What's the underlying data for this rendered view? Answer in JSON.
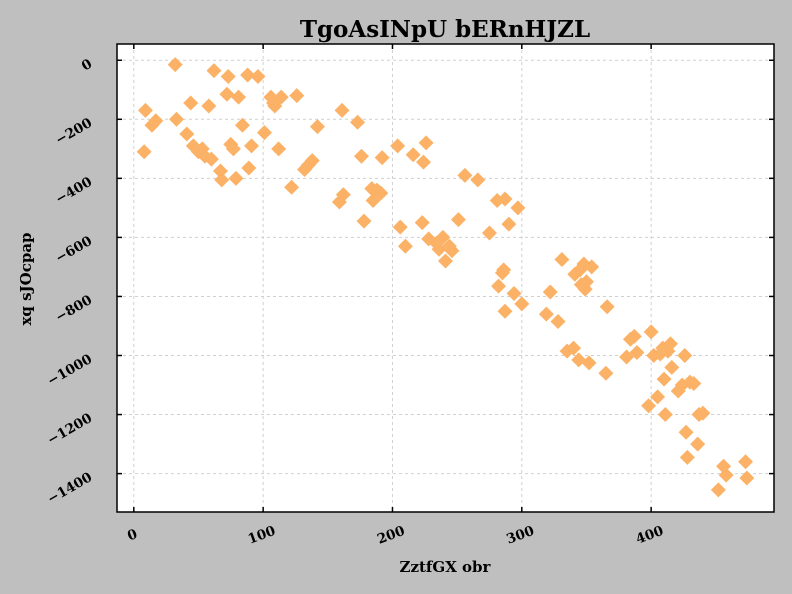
{
  "chart_data": {
    "type": "scatter",
    "title": "TgoAsINpU bERnHJZL",
    "xlabel": "ZztfGX obr",
    "ylabel": "xq sJOcpap",
    "xlim": [
      -13,
      495
    ],
    "ylim": [
      -1530,
      55
    ],
    "xticks": [
      0,
      100,
      200,
      300,
      400
    ],
    "yticks": [
      0,
      -200,
      -400,
      -600,
      -800,
      -1000,
      -1200,
      -1400
    ],
    "grid": true,
    "marker": "diamond",
    "marker_color": "#fbb267",
    "background_color": "#ffffff",
    "figure_color": "#bfbfbf",
    "points": [
      [
        9,
        -170
      ],
      [
        8,
        -310
      ],
      [
        14,
        -220
      ],
      [
        17,
        -205
      ],
      [
        32,
        -15
      ],
      [
        33,
        -200
      ],
      [
        41,
        -250
      ],
      [
        44,
        -145
      ],
      [
        46,
        -290
      ],
      [
        50,
        -310
      ],
      [
        53,
        -300
      ],
      [
        55,
        -325
      ],
      [
        58,
        -155
      ],
      [
        60,
        -335
      ],
      [
        62,
        -35
      ],
      [
        67,
        -375
      ],
      [
        68,
        -405
      ],
      [
        72,
        -115
      ],
      [
        73,
        -55
      ],
      [
        75,
        -285
      ],
      [
        77,
        -300
      ],
      [
        79,
        -400
      ],
      [
        81,
        -125
      ],
      [
        84,
        -220
      ],
      [
        88,
        -50
      ],
      [
        89,
        -365
      ],
      [
        91,
        -290
      ],
      [
        96,
        -55
      ],
      [
        101,
        -245
      ],
      [
        106,
        -125
      ],
      [
        108,
        -145
      ],
      [
        109,
        -155
      ],
      [
        112,
        -300
      ],
      [
        114,
        -125
      ],
      [
        122,
        -430
      ],
      [
        126,
        -120
      ],
      [
        132,
        -370
      ],
      [
        135,
        -355
      ],
      [
        138,
        -340
      ],
      [
        142,
        -225
      ],
      [
        159,
        -480
      ],
      [
        161,
        -170
      ],
      [
        162,
        -455
      ],
      [
        173,
        -210
      ],
      [
        176,
        -325
      ],
      [
        178,
        -545
      ],
      [
        184,
        -435
      ],
      [
        185,
        -475
      ],
      [
        188,
        -440
      ],
      [
        191,
        -450
      ],
      [
        192,
        -330
      ],
      [
        204,
        -290
      ],
      [
        206,
        -565
      ],
      [
        210,
        -630
      ],
      [
        216,
        -320
      ],
      [
        223,
        -550
      ],
      [
        224,
        -345
      ],
      [
        226,
        -280
      ],
      [
        228,
        -605
      ],
      [
        234,
        -620
      ],
      [
        236,
        -640
      ],
      [
        239,
        -600
      ],
      [
        241,
        -680
      ],
      [
        244,
        -630
      ],
      [
        246,
        -645
      ],
      [
        251,
        -540
      ],
      [
        256,
        -390
      ],
      [
        266,
        -405
      ],
      [
        275,
        -585
      ],
      [
        281,
        -475
      ],
      [
        282,
        -765
      ],
      [
        285,
        -720
      ],
      [
        286,
        -710
      ],
      [
        287,
        -470
      ],
      [
        287,
        -850
      ],
      [
        290,
        -555
      ],
      [
        294,
        -790
      ],
      [
        297,
        -500
      ],
      [
        300,
        -825
      ],
      [
        319,
        -860
      ],
      [
        322,
        -785
      ],
      [
        328,
        -885
      ],
      [
        331,
        -675
      ],
      [
        335,
        -985
      ],
      [
        340,
        -975
      ],
      [
        341,
        -725
      ],
      [
        344,
        -1015
      ],
      [
        345,
        -710
      ],
      [
        346,
        -760
      ],
      [
        348,
        -690
      ],
      [
        349,
        -775
      ],
      [
        350,
        -750
      ],
      [
        352,
        -1025
      ],
      [
        354,
        -700
      ],
      [
        365,
        -1060
      ],
      [
        366,
        -835
      ],
      [
        381,
        -1005
      ],
      [
        384,
        -945
      ],
      [
        387,
        -935
      ],
      [
        389,
        -990
      ],
      [
        398,
        -1170
      ],
      [
        400,
        -920
      ],
      [
        402,
        -1000
      ],
      [
        405,
        -1140
      ],
      [
        407,
        -995
      ],
      [
        409,
        -975
      ],
      [
        410,
        -1080
      ],
      [
        411,
        -1200
      ],
      [
        413,
        -985
      ],
      [
        415,
        -960
      ],
      [
        416,
        -1040
      ],
      [
        421,
        -1120
      ],
      [
        424,
        -1100
      ],
      [
        426,
        -1000
      ],
      [
        427,
        -1260
      ],
      [
        428,
        -1345
      ],
      [
        430,
        -1090
      ],
      [
        433,
        -1095
      ],
      [
        436,
        -1300
      ],
      [
        437,
        -1200
      ],
      [
        440,
        -1195
      ],
      [
        452,
        -1455
      ],
      [
        456,
        -1375
      ],
      [
        458,
        -1405
      ],
      [
        473,
        -1360
      ],
      [
        474,
        -1415
      ]
    ]
  }
}
